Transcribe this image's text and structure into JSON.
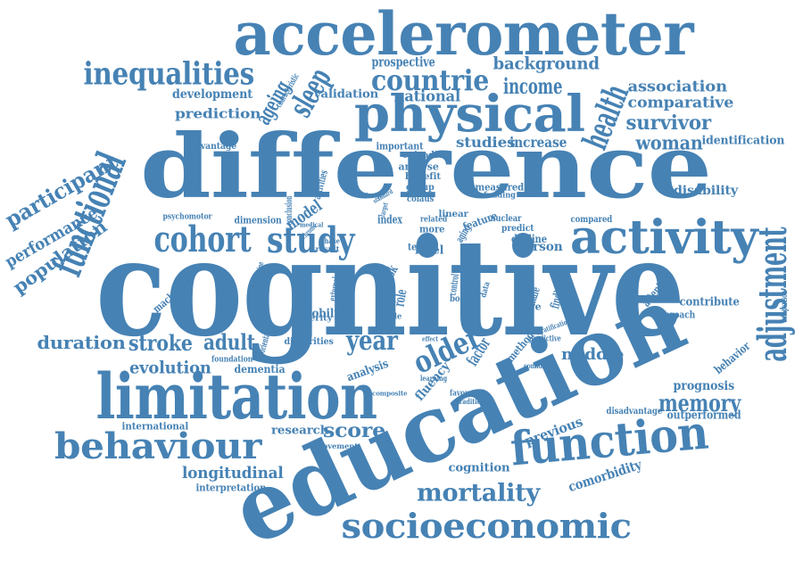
{
  "cloud": {
    "color": "#4682b4",
    "words": [
      {
        "id": "accelerometer",
        "text": "accelerometer"
      },
      {
        "id": "cognitive",
        "text": "cognitive"
      },
      {
        "id": "difference",
        "text": "difference"
      },
      {
        "id": "education",
        "text": "education"
      },
      {
        "id": "limitation",
        "text": "limitation"
      },
      {
        "id": "physical",
        "text": "physical"
      },
      {
        "id": "functional",
        "text": "functional"
      },
      {
        "id": "adjustment",
        "text": "adjustment"
      },
      {
        "id": "activity",
        "text": "activity"
      },
      {
        "id": "function",
        "text": "function"
      },
      {
        "id": "behaviour",
        "text": "behaviour"
      },
      {
        "id": "socioeconomic",
        "text": "socioeconomic"
      },
      {
        "id": "cohort",
        "text": "cohort"
      },
      {
        "id": "study",
        "text": "study"
      },
      {
        "id": "inequalities",
        "text": "inequalities"
      },
      {
        "id": "health",
        "text": "health"
      },
      {
        "id": "sleep",
        "text": "sleep"
      },
      {
        "id": "countrie",
        "text": "countrie"
      },
      {
        "id": "older",
        "text": "older"
      },
      {
        "id": "mortality",
        "text": "mortality"
      },
      {
        "id": "year",
        "text": "year"
      },
      {
        "id": "memory",
        "text": "memory"
      },
      {
        "id": "adult",
        "text": "adult"
      },
      {
        "id": "stroke",
        "text": "stroke"
      },
      {
        "id": "participant",
        "text": "participant"
      },
      {
        "id": "performance",
        "text": "performance"
      },
      {
        "id": "population",
        "text": "population"
      },
      {
        "id": "duration",
        "text": "duration"
      },
      {
        "id": "evolution",
        "text": "evolution"
      },
      {
        "id": "longitudinal",
        "text": "longitudinal"
      },
      {
        "id": "score",
        "text": "score"
      },
      {
        "id": "survivor",
        "text": "survivor"
      },
      {
        "id": "woman",
        "text": "woman"
      },
      {
        "id": "income",
        "text": "income"
      },
      {
        "id": "background",
        "text": "background"
      },
      {
        "id": "association",
        "text": "association"
      },
      {
        "id": "comparative",
        "text": "comparative"
      },
      {
        "id": "ageing",
        "text": "ageing"
      },
      {
        "id": "national",
        "text": "national"
      },
      {
        "id": "prospective",
        "text": "prospective"
      },
      {
        "id": "development",
        "text": "development"
      },
      {
        "id": "prediction",
        "text": "prediction"
      },
      {
        "id": "validation",
        "text": "validation"
      },
      {
        "id": "studies",
        "text": "studies"
      },
      {
        "id": "increase",
        "text": "increase"
      },
      {
        "id": "identification",
        "text": "identification"
      },
      {
        "id": "disability",
        "text": "disability"
      },
      {
        "id": "middle",
        "text": "middle"
      },
      {
        "id": "factor",
        "text": "factor"
      },
      {
        "id": "birth",
        "text": "birth"
      },
      {
        "id": "model",
        "text": "model"
      },
      {
        "id": "prognosis",
        "text": "prognosis"
      },
      {
        "id": "previous",
        "text": "previous"
      },
      {
        "id": "comorbidity",
        "text": "comorbidity"
      },
      {
        "id": "cognition",
        "text": "cognition"
      },
      {
        "id": "research",
        "text": "research"
      },
      {
        "id": "international",
        "text": "international"
      },
      {
        "id": "interpretation",
        "text": "interpretation"
      },
      {
        "id": "mobility",
        "text": "mobility"
      },
      {
        "id": "dementia",
        "text": "dementia"
      },
      {
        "id": "foundation",
        "text": "foundation"
      },
      {
        "id": "disparities",
        "text": "disparities"
      },
      {
        "id": "analysis",
        "text": "analysis"
      },
      {
        "id": "attention",
        "text": "attention"
      },
      {
        "id": "contribute",
        "text": "contribute"
      },
      {
        "id": "behavior",
        "text": "behavior"
      },
      {
        "id": "approach",
        "text": "approach"
      },
      {
        "id": "comparison",
        "text": "comparison"
      },
      {
        "id": "outperformed",
        "text": "outperformed"
      },
      {
        "id": "disadvantage",
        "text": "disadvantage"
      },
      {
        "id": "finding",
        "text": "finding"
      },
      {
        "id": "female",
        "text": "female"
      },
      {
        "id": "method",
        "text": "method"
      },
      {
        "id": "fluency",
        "text": "fluency"
      },
      {
        "id": "machine",
        "text": "machine"
      },
      {
        "id": "dimension",
        "text": "dimension"
      },
      {
        "id": "psychomotor",
        "text": "psychomotor"
      },
      {
        "id": "advantage",
        "text": "advantage"
      },
      {
        "id": "characteristic",
        "text": "characteristic"
      },
      {
        "id": "index",
        "text": "index"
      },
      {
        "id": "level",
        "text": "level"
      },
      {
        "id": "person",
        "text": "person"
      },
      {
        "id": "decline",
        "text": "decline"
      },
      {
        "id": "compared",
        "text": "compared"
      },
      {
        "id": "important",
        "text": "important"
      },
      {
        "id": "episodic",
        "text": "episodic"
      },
      {
        "id": "analyse",
        "text": "analyse"
      },
      {
        "id": "benefit",
        "text": "benefit"
      },
      {
        "id": "group",
        "text": "group"
      },
      {
        "id": "measured",
        "text": "measured"
      },
      {
        "id": "funding",
        "text": "funding"
      },
      {
        "id": "activities",
        "text": "activities"
      },
      {
        "id": "conclusion",
        "text": "conclusion"
      },
      {
        "id": "colaus",
        "text": "colaus"
      },
      {
        "id": "linear",
        "text": "linear"
      },
      {
        "id": "feature",
        "text": "feature"
      },
      {
        "id": "aging",
        "text": "aging"
      },
      {
        "id": "predict",
        "text": "predict"
      },
      {
        "id": "nuclear",
        "text": "nuclear"
      },
      {
        "id": "more",
        "text": "more"
      },
      {
        "id": "related",
        "text": "related"
      },
      {
        "id": "role",
        "text": "role"
      },
      {
        "id": "risk",
        "text": "risk"
      },
      {
        "id": "higher",
        "text": "higher"
      },
      {
        "id": "based",
        "text": "based"
      },
      {
        "id": "control",
        "text": "control"
      },
      {
        "id": "body",
        "text": "body"
      },
      {
        "id": "wave",
        "text": "wave"
      },
      {
        "id": "external",
        "text": "external"
      },
      {
        "id": "orientation",
        "text": "orientation"
      },
      {
        "id": "instrumental",
        "text": "instrumental"
      },
      {
        "id": "examine",
        "text": "examine"
      },
      {
        "id": "chronic",
        "text": "chronic"
      },
      {
        "id": "phase",
        "text": "phase"
      },
      {
        "id": "result",
        "text": "result"
      },
      {
        "id": "severity",
        "text": "severity"
      },
      {
        "id": "medical",
        "text": "medical"
      },
      {
        "id": "male",
        "text": "male"
      },
      {
        "id": "survey",
        "text": "survey"
      },
      {
        "id": "learning",
        "text": "learning"
      },
      {
        "id": "composite",
        "text": "composite"
      },
      {
        "id": "movement",
        "text": "movement"
      },
      {
        "id": "favourable",
        "text": "favourable"
      },
      {
        "id": "traditional",
        "text": "traditional"
      },
      {
        "id": "confidence",
        "text": "confidence"
      },
      {
        "id": "predictive",
        "text": "predictive"
      },
      {
        "id": "stratification",
        "text": "stratification"
      },
      {
        "id": "term",
        "text": "term"
      },
      {
        "id": "data",
        "text": "data"
      },
      {
        "id": "effect",
        "text": "effect"
      },
      {
        "id": "standard",
        "text": "standard"
      },
      {
        "id": "target",
        "text": "target"
      },
      {
        "id": "change",
        "text": "change"
      }
    ]
  }
}
